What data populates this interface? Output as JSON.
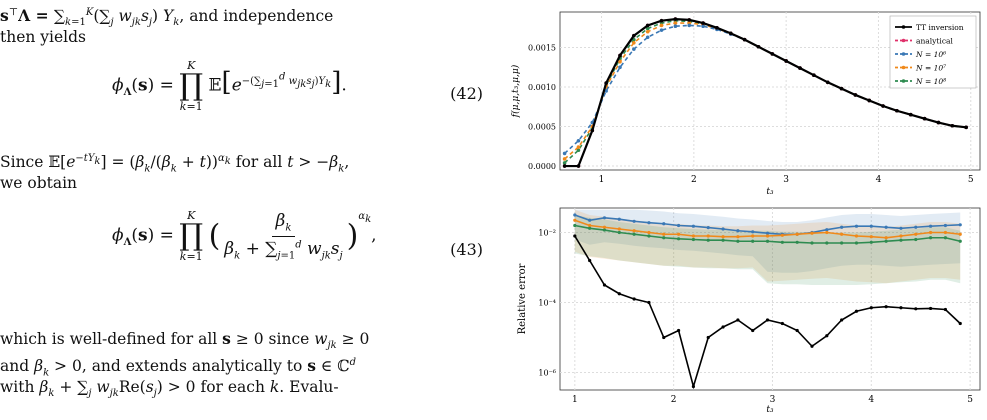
{
  "text": {
    "line1_start": "s",
    "line1_mid": "Λ = ",
    "line1_end": "and independence",
    "line2": "then yields",
    "eq42_num": "(42)",
    "line3": "Since",
    "line3_mid": "for all",
    "line4": "we obtain",
    "eq43_num": "(43)",
    "line5": "which is well-defined for all",
    "line5_end": "since",
    "line6_a": "and",
    "line6_b": "and extends analytically to",
    "line7_end": "for each",
    "line7_tail": "Evalu-"
  },
  "chart_data": [
    {
      "type": "line",
      "ylabel": "f(μ,μ,t₃,μ,μ)",
      "xlabel": "t₃",
      "xlim": [
        0.55,
        5.1
      ],
      "ylim": [
        -5e-05,
        0.00195
      ],
      "xticks": [
        "1",
        "2",
        "3",
        "4",
        "5"
      ],
      "yticks": [
        "0.0000",
        "0.0005",
        "0.0010",
        "0.0015"
      ],
      "grid": true,
      "legend_position": "top-right",
      "x": [
        0.6,
        0.75,
        0.9,
        1.05,
        1.2,
        1.35,
        1.5,
        1.65,
        1.8,
        1.95,
        2.1,
        2.25,
        2.4,
        2.55,
        2.7,
        2.85,
        3.0,
        3.15,
        3.3,
        3.45,
        3.6,
        3.75,
        3.9,
        4.05,
        4.2,
        4.35,
        4.5,
        4.65,
        4.8,
        4.95
      ],
      "series": [
        {
          "name": "TT inversion",
          "color": "#000000",
          "style": "solid",
          "values": [
            0.0,
            0.0,
            0.00045,
            0.00105,
            0.0014,
            0.00165,
            0.00178,
            0.00184,
            0.00186,
            0.00185,
            0.00181,
            0.00175,
            0.00168,
            0.0016,
            0.00151,
            0.00142,
            0.00133,
            0.00124,
            0.00115,
            0.00106,
            0.00098,
            0.0009,
            0.00083,
            0.00076,
            0.0007,
            0.00065,
            0.0006,
            0.00055,
            0.00051,
            0.00049
          ]
        },
        {
          "name": "analytical",
          "color": "#e0306a",
          "style": "dashed",
          "values": [
            0.0,
            0.0,
            0.00045,
            0.00105,
            0.0014,
            0.00165,
            0.00178,
            0.00184,
            0.00186,
            0.00185,
            0.00181,
            0.00175,
            0.00168,
            0.0016,
            0.00151,
            0.00142,
            0.00133,
            0.00124,
            0.00115,
            0.00106,
            0.00098,
            0.0009,
            0.00083,
            0.00076,
            0.0007,
            0.00065,
            0.0006,
            0.00055,
            0.00051,
            0.00049
          ]
        },
        {
          "name": "N = 10⁶",
          "color": "#3a78b5",
          "style": "dashed",
          "values": [
            0.00016,
            0.00032,
            0.00055,
            0.00095,
            0.00125,
            0.00148,
            0.00163,
            0.00172,
            0.00177,
            0.00178,
            0.00177,
            0.00173,
            0.00167,
            0.0016,
            0.00151,
            0.00142,
            0.00133,
            0.00124,
            0.00115,
            0.00106,
            0.00098,
            0.0009,
            0.00083,
            0.00076,
            0.0007,
            0.00065,
            0.0006,
            0.00055,
            0.00051,
            0.00049
          ]
        },
        {
          "name": "N = 10⁷",
          "color": "#f0891a",
          "style": "dashed",
          "values": [
            9e-05,
            0.00024,
            0.0005,
            0.001,
            0.00132,
            0.00156,
            0.0017,
            0.00178,
            0.00181,
            0.00181,
            0.00179,
            0.00174,
            0.00168,
            0.0016,
            0.00151,
            0.00142,
            0.00133,
            0.00124,
            0.00115,
            0.00106,
            0.00098,
            0.0009,
            0.00083,
            0.00076,
            0.0007,
            0.00065,
            0.0006,
            0.00055,
            0.00051,
            0.00049
          ]
        },
        {
          "name": "N = 10⁸",
          "color": "#2e8b50",
          "style": "dashed",
          "values": [
            4e-05,
            0.0002,
            0.00048,
            0.00102,
            0.00136,
            0.0016,
            0.00174,
            0.00181,
            0.00184,
            0.00183,
            0.0018,
            0.00175,
            0.00168,
            0.0016,
            0.00151,
            0.00142,
            0.00133,
            0.00124,
            0.00115,
            0.00106,
            0.00098,
            0.0009,
            0.00083,
            0.00076,
            0.0007,
            0.00065,
            0.0006,
            0.00055,
            0.00051,
            0.00049
          ]
        }
      ]
    },
    {
      "type": "line",
      "ylabel": "Relative error",
      "xlabel": "t₃",
      "xlim": [
        0.85,
        5.1
      ],
      "ylim": [
        -6.5,
        -1.3
      ],
      "yscale": "log",
      "xticks": [
        "1",
        "2",
        "3",
        "4",
        "5"
      ],
      "yticks": [
        "10⁻²",
        "10⁻⁴",
        "10⁻⁶"
      ],
      "grid": true,
      "x": [
        1.0,
        1.15,
        1.3,
        1.45,
        1.6,
        1.75,
        1.9,
        2.05,
        2.2,
        2.35,
        2.5,
        2.65,
        2.8,
        2.95,
        3.1,
        3.25,
        3.4,
        3.55,
        3.7,
        3.85,
        4.0,
        4.15,
        4.3,
        4.45,
        4.6,
        4.75,
        4.9
      ],
      "series": [
        {
          "name": "TT inversion",
          "color": "#000000",
          "log10_values": [
            -2.1,
            -2.8,
            -3.5,
            -3.75,
            -3.9,
            -4.0,
            -5.0,
            -4.8,
            -6.4,
            -5.0,
            -4.7,
            -4.5,
            -4.8,
            -4.5,
            -4.6,
            -4.8,
            -5.25,
            -4.95,
            -4.5,
            -4.25,
            -4.15,
            -4.12,
            -4.15,
            -4.18,
            -4.17,
            -4.2,
            -4.6
          ]
        },
        {
          "name": "N = 10⁶",
          "color": "#3a78b5",
          "log10_values": [
            -1.5,
            -1.65,
            -1.58,
            -1.62,
            -1.68,
            -1.72,
            -1.75,
            -1.8,
            -1.82,
            -1.86,
            -1.9,
            -1.95,
            -1.98,
            -2.02,
            -2.05,
            -2.05,
            -2.0,
            -1.92,
            -1.85,
            -1.82,
            -1.82,
            -1.85,
            -1.88,
            -1.85,
            -1.82,
            -1.8,
            -1.78
          ]
        },
        {
          "name": "N = 10⁷",
          "color": "#f0891a",
          "log10_values": [
            -1.65,
            -1.8,
            -1.85,
            -1.9,
            -1.95,
            -2.0,
            -2.05,
            -2.05,
            -2.1,
            -2.1,
            -2.12,
            -2.12,
            -2.1,
            -2.1,
            -2.08,
            -2.05,
            -2.02,
            -2.0,
            -2.05,
            -2.1,
            -2.12,
            -2.15,
            -2.1,
            -2.05,
            -2.0,
            -2.0,
            -2.05
          ]
        },
        {
          "name": "N = 10⁸",
          "color": "#2e8b50",
          "log10_values": [
            -1.8,
            -1.88,
            -1.93,
            -2.0,
            -2.05,
            -2.1,
            -2.15,
            -2.18,
            -2.2,
            -2.22,
            -2.22,
            -2.25,
            -2.25,
            -2.25,
            -2.28,
            -2.28,
            -2.3,
            -2.3,
            -2.3,
            -2.3,
            -2.28,
            -2.25,
            -2.22,
            -2.2,
            -2.15,
            -2.15,
            -2.25
          ]
        }
      ]
    }
  ]
}
